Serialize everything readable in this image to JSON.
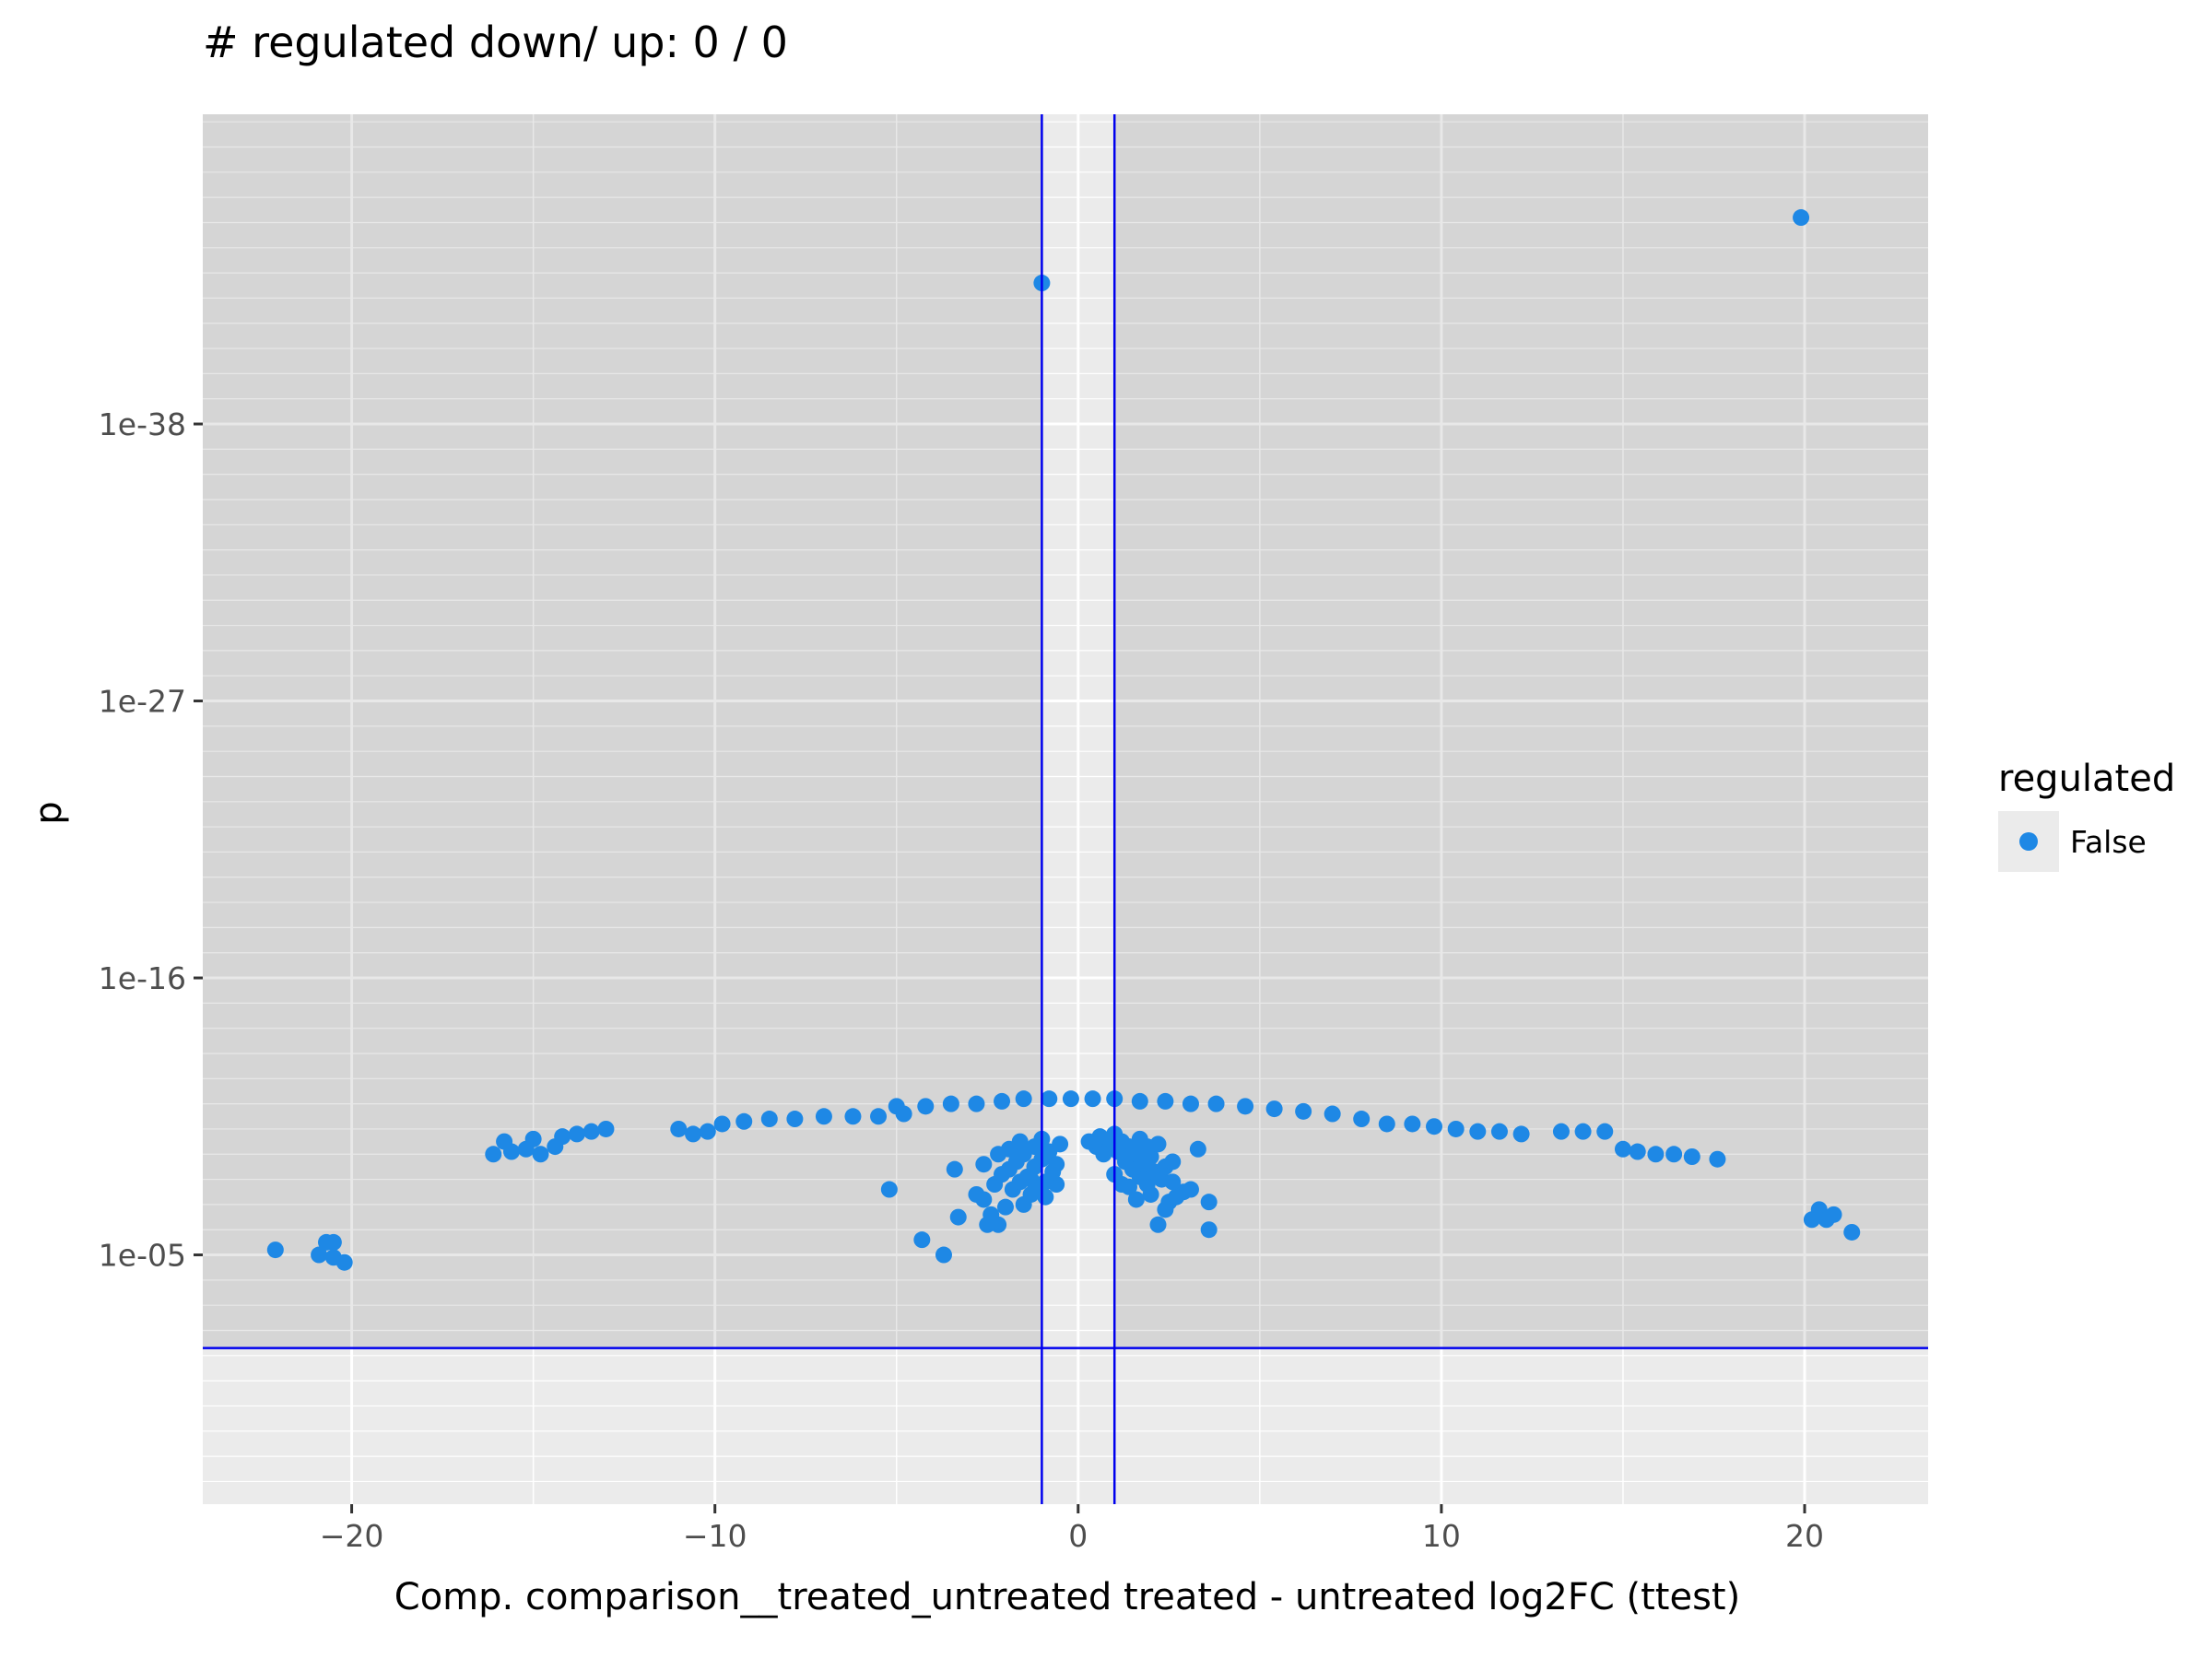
{
  "chart_data": {
    "type": "scatter",
    "title": "# regulated down/ up: 0 / 0",
    "xlabel": "Comp. comparison__treated_untreated treated - untreated log2FC (ttest)",
    "ylabel": "p",
    "xlim": [
      -24.1,
      23.4
    ],
    "ylim_log10": [
      -50.3,
      4.9
    ],
    "y_scale": "reversed-log10",
    "x_ticks": [
      {
        "value": -20,
        "label": "−20"
      },
      {
        "value": -10,
        "label": "−10"
      },
      {
        "value": 0,
        "label": "0"
      },
      {
        "value": 10,
        "label": "10"
      },
      {
        "value": 20,
        "label": "20"
      }
    ],
    "y_ticks": [
      {
        "log10": -38,
        "label": "1e-38"
      },
      {
        "log10": -27,
        "label": "1e-27"
      },
      {
        "log10": -16,
        "label": "1e-16"
      },
      {
        "log10": -5,
        "label": "1e-05"
      }
    ],
    "thresholds": {
      "fc_lower": -1,
      "fc_upper": 1,
      "p": 0.05
    },
    "grid": true,
    "legend": {
      "title": "regulated",
      "position": "right",
      "entries": [
        {
          "label": "False",
          "color": "#1e88e5"
        }
      ]
    },
    "colors": {
      "point": "#1e88e5",
      "threshold": "#0000ee",
      "panel": "#d9d9d9",
      "panel_light": "#ebebeb"
    },
    "series": [
      {
        "name": "False",
        "points": [
          [
            19.9,
            -46.2
          ],
          [
            -1.0,
            -43.6
          ],
          [
            -22.1,
            -5.2
          ],
          [
            -20.9,
            -5.0
          ],
          [
            -20.7,
            -5.5
          ],
          [
            -20.5,
            -4.9
          ],
          [
            -20.5,
            -5.5
          ],
          [
            -20.2,
            -4.7
          ],
          [
            20.2,
            -6.4
          ],
          [
            20.4,
            -6.8
          ],
          [
            20.6,
            -6.4
          ],
          [
            20.8,
            -6.6
          ],
          [
            21.3,
            -5.9
          ],
          [
            -4.3,
            -5.6
          ],
          [
            -3.7,
            -5.0
          ],
          [
            -3.3,
            -6.5
          ],
          [
            -5.2,
            -7.6
          ],
          [
            -3.4,
            -8.4
          ],
          [
            -2.5,
            -6.2
          ],
          [
            -2.2,
            -6.2
          ],
          [
            -2.4,
            -6.6
          ],
          [
            -2.0,
            -6.9
          ],
          [
            -2.6,
            -7.2
          ],
          [
            -2.8,
            -7.4
          ],
          [
            -1.5,
            -7.0
          ],
          [
            -1.3,
            -7.4
          ],
          [
            -1.8,
            -7.6
          ],
          [
            -2.3,
            -7.8
          ],
          [
            -1.6,
            -7.9
          ],
          [
            -1.1,
            -7.6
          ],
          [
            -0.9,
            -7.3
          ],
          [
            -0.6,
            -7.8
          ],
          [
            -1.4,
            -8.1
          ],
          [
            -2.1,
            -8.2
          ],
          [
            -1.9,
            -8.4
          ],
          [
            -1.2,
            -8.5
          ],
          [
            -0.7,
            -8.3
          ],
          [
            -1.7,
            -8.7
          ],
          [
            -1.0,
            -8.8
          ],
          [
            -2.6,
            -8.6
          ],
          [
            -1.5,
            -9.0
          ],
          [
            -0.8,
            -9.1
          ],
          [
            -1.2,
            -9.3
          ],
          [
            -1.9,
            -9.2
          ],
          [
            -0.5,
            -9.4
          ],
          [
            -1.6,
            -9.5
          ],
          [
            -1.0,
            -9.6
          ],
          [
            -2.2,
            -9.0
          ],
          [
            -0.9,
            -7.9
          ],
          [
            -1.3,
            -8.0
          ],
          [
            -0.6,
            -8.6
          ],
          [
            2.2,
            -6.2
          ],
          [
            2.4,
            -6.8
          ],
          [
            2.5,
            -7.1
          ],
          [
            3.6,
            -6.0
          ],
          [
            3.6,
            -7.1
          ],
          [
            2.9,
            -7.5
          ],
          [
            3.1,
            -7.6
          ],
          [
            1.6,
            -7.2
          ],
          [
            2.7,
            -7.3
          ],
          [
            2.0,
            -7.4
          ],
          [
            1.4,
            -7.7
          ],
          [
            1.9,
            -7.8
          ],
          [
            2.6,
            -7.9
          ],
          [
            1.2,
            -7.8
          ],
          [
            2.3,
            -8.0
          ],
          [
            1.7,
            -8.1
          ],
          [
            2.1,
            -8.3
          ],
          [
            1.5,
            -8.4
          ],
          [
            1.0,
            -8.2
          ],
          [
            1.8,
            -8.6
          ],
          [
            2.4,
            -8.5
          ],
          [
            1.3,
            -8.7
          ],
          [
            2.0,
            -8.9
          ],
          [
            1.6,
            -9.0
          ],
          [
            1.1,
            -9.1
          ],
          [
            2.6,
            -8.7
          ],
          [
            1.4,
            -9.3
          ],
          [
            0.8,
            -9.2
          ],
          [
            1.9,
            -9.3
          ],
          [
            1.2,
            -9.5
          ],
          [
            0.9,
            -9.6
          ],
          [
            3.3,
            -9.2
          ],
          [
            1.7,
            -9.6
          ],
          [
            1.0,
            -9.8
          ],
          [
            2.2,
            -9.4
          ],
          [
            0.5,
            -9.3
          ],
          [
            0.3,
            -9.5
          ],
          [
            0.7,
            -9.0
          ],
          [
            0.6,
            -9.7
          ],
          [
            -16.1,
            -9.0
          ],
          [
            -15.6,
            -9.1
          ],
          [
            -15.2,
            -9.2
          ],
          [
            -14.8,
            -9.0
          ],
          [
            -14.4,
            -9.3
          ],
          [
            -15.8,
            -9.5
          ],
          [
            -15.0,
            -9.6
          ],
          [
            -14.2,
            -9.7
          ],
          [
            -13.8,
            -9.8
          ],
          [
            -13.4,
            -9.9
          ],
          [
            -13.0,
            -10.0
          ],
          [
            -11.0,
            -10.0
          ],
          [
            -10.6,
            -9.8
          ],
          [
            -10.2,
            -9.9
          ],
          [
            -9.8,
            -10.2
          ],
          [
            -9.2,
            -10.3
          ],
          [
            -8.5,
            -10.4
          ],
          [
            -7.8,
            -10.4
          ],
          [
            -7.0,
            -10.5
          ],
          [
            -6.2,
            -10.5
          ],
          [
            -5.5,
            -10.5
          ],
          [
            -4.8,
            -10.6
          ],
          [
            -5.0,
            -10.9
          ],
          [
            -4.2,
            -10.9
          ],
          [
            -3.5,
            -11.0
          ],
          [
            -2.8,
            -11.0
          ],
          [
            -2.1,
            -11.1
          ],
          [
            -1.5,
            -11.2
          ],
          [
            -0.8,
            -11.2
          ],
          [
            -0.2,
            -11.2
          ],
          [
            0.4,
            -11.2
          ],
          [
            1.0,
            -11.2
          ],
          [
            1.7,
            -11.1
          ],
          [
            2.4,
            -11.1
          ],
          [
            3.1,
            -11.0
          ],
          [
            3.8,
            -11.0
          ],
          [
            4.6,
            -10.9
          ],
          [
            5.4,
            -10.8
          ],
          [
            6.2,
            -10.7
          ],
          [
            7.0,
            -10.6
          ],
          [
            7.8,
            -10.4
          ],
          [
            8.5,
            -10.2
          ],
          [
            9.2,
            -10.2
          ],
          [
            9.8,
            -10.1
          ],
          [
            10.4,
            -10.0
          ],
          [
            11.0,
            -9.9
          ],
          [
            11.6,
            -9.9
          ],
          [
            12.2,
            -9.8
          ],
          [
            13.3,
            -9.9
          ],
          [
            13.9,
            -9.9
          ],
          [
            14.5,
            -9.9
          ],
          [
            15.0,
            -9.2
          ],
          [
            15.4,
            -9.1
          ],
          [
            15.9,
            -9.0
          ],
          [
            16.4,
            -9.0
          ],
          [
            16.9,
            -8.9
          ],
          [
            17.6,
            -8.8
          ]
        ]
      }
    ]
  }
}
